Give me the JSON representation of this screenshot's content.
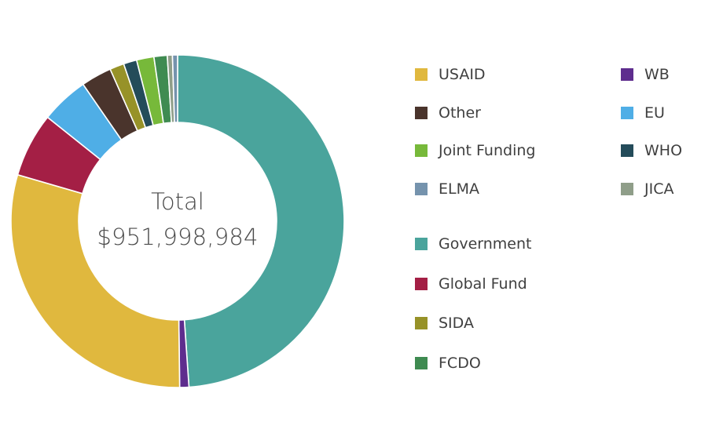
{
  "chart_data": {
    "type": "pie",
    "title": "",
    "center_title": "Total",
    "center_value": "$951,998,984",
    "total": 951998984,
    "slices_in_draw_order": [
      {
        "name": "Government",
        "percent": 49.4,
        "color": "#4aa49c"
      },
      {
        "name": "WB",
        "percent": 0.9,
        "color": "#5e2d8e"
      },
      {
        "name": "USAID",
        "percent": 30.0,
        "color": "#e0b83e"
      },
      {
        "name": "Global Fund",
        "percent": 6.3,
        "color": "#a41f45"
      },
      {
        "name": "EU",
        "percent": 4.7,
        "color": "#4faee6"
      },
      {
        "name": "Other",
        "percent": 3.0,
        "color": "#4a342c"
      },
      {
        "name": "SIDA",
        "percent": 1.4,
        "color": "#979228"
      },
      {
        "name": "WHO",
        "percent": 1.3,
        "color": "#244c5a"
      },
      {
        "name": "Joint Funding",
        "percent": 1.7,
        "color": "#77b93a"
      },
      {
        "name": "FCDO",
        "percent": 1.3,
        "color": "#3f8b51"
      },
      {
        "name": "JICA",
        "percent": 0.5,
        "color": "#8f9e89"
      },
      {
        "name": "ELMA",
        "percent": 0.5,
        "color": "#7593ad"
      }
    ],
    "legend": {
      "placement": "right",
      "columns": [
        [
          {
            "label": "USAID",
            "color": "#e0b83e"
          },
          {
            "label": "Other",
            "color": "#4a342c"
          },
          {
            "label": "Joint Funding",
            "color": "#77b93a"
          },
          {
            "label": "ELMA",
            "color": "#7593ad"
          }
        ],
        [
          {
            "label": "WB",
            "color": "#5e2d8e"
          },
          {
            "label": "EU",
            "color": "#4faee6"
          },
          {
            "label": "WHO",
            "color": "#244c5a"
          },
          {
            "label": "JICA",
            "color": "#8f9e89"
          }
        ],
        [
          {
            "label": "Government",
            "color": "#4aa49c"
          },
          {
            "label": "Global Fund",
            "color": "#a41f45"
          },
          {
            "label": "SIDA",
            "color": "#979228"
          },
          {
            "label": "FCDO",
            "color": "#3f8b51"
          }
        ]
      ]
    }
  }
}
